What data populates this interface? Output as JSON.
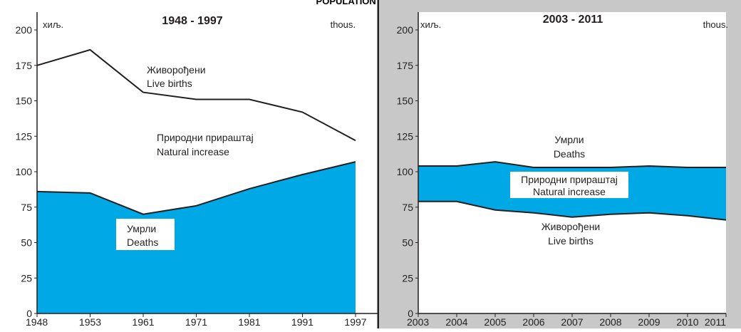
{
  "figure_title": "POPULATION CHANGES",
  "colors": {
    "deaths_fill": "#00a9e6",
    "increase_fill": "#00a9e6",
    "panel2_background": "#c8c8c8",
    "line": "#231f20"
  },
  "chart_data": [
    {
      "type": "area",
      "title": "1948 - 1997",
      "unit_left": "хиљ.",
      "unit_right": "thous.",
      "x": [
        "1948",
        "1953",
        "1961",
        "1971",
        "1981",
        "1991",
        "1997"
      ],
      "ylim": [
        0,
        200
      ],
      "yticks": [
        "0",
        "25",
        "50",
        "75",
        "100",
        "125",
        "150",
        "175",
        "200"
      ],
      "grid": false,
      "series": [
        {
          "name": "Живорођени / Live births",
          "values": [
            175,
            186,
            156,
            151,
            151,
            142,
            122
          ]
        },
        {
          "name": "Умрли / Deaths",
          "values": [
            86,
            85,
            70,
            76,
            88,
            98,
            107
          ]
        }
      ],
      "labels": {
        "births": [
          "Живорођени",
          "Live births"
        ],
        "increase": [
          "Природни прираштај",
          "Natural increase"
        ],
        "deaths": [
          "Умрли",
          "Deaths"
        ]
      }
    },
    {
      "type": "area",
      "title": "2003 - 2011",
      "unit_left": "хиљ.",
      "unit_right": "thous.",
      "x": [
        "2003",
        "2004",
        "2005",
        "2006",
        "2007",
        "2008",
        "2009",
        "2010",
        "2011"
      ],
      "ylim": [
        0,
        200
      ],
      "yticks": [
        "0",
        "25",
        "50",
        "75",
        "100",
        "125",
        "150",
        "175",
        "200"
      ],
      "grid": false,
      "series": [
        {
          "name": "Умрли / Deaths",
          "values": [
            104,
            104,
            107,
            103,
            103,
            103,
            104,
            103,
            103
          ]
        },
        {
          "name": "Живорођени / Live births",
          "values": [
            79,
            79,
            73,
            71,
            68,
            70,
            71,
            69,
            66
          ]
        }
      ],
      "labels": {
        "deaths": [
          "Умрли",
          "Deaths"
        ],
        "increase": [
          "Природни прираштај",
          "Natural increase"
        ],
        "births": [
          "Живорођени",
          "Live births"
        ]
      }
    }
  ]
}
